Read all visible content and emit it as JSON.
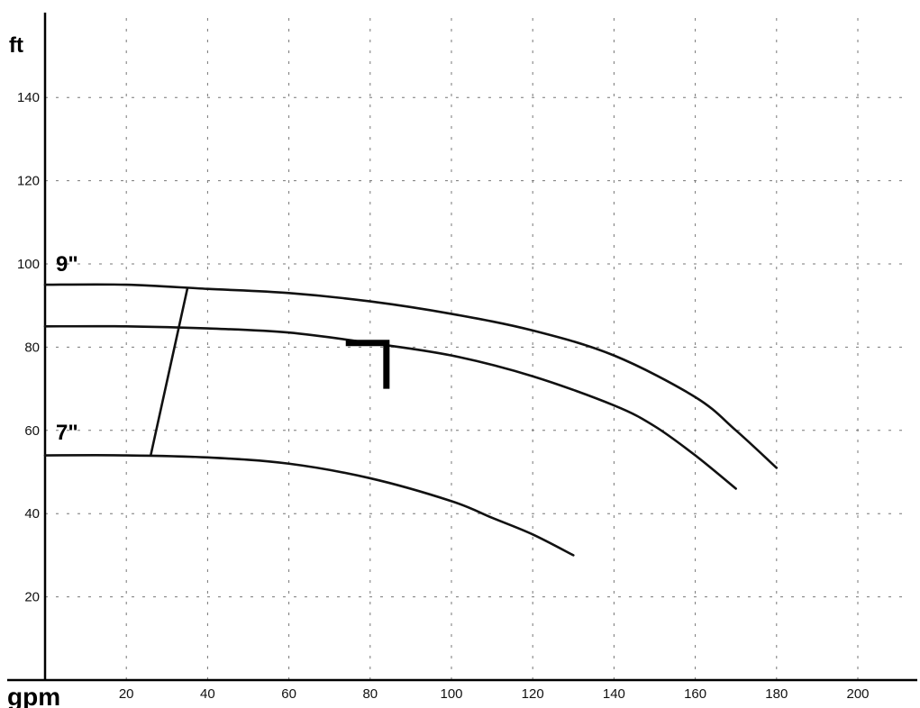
{
  "chart_data": {
    "type": "line",
    "xlabel": "gpm",
    "ylabel": "ft",
    "xlim": [
      0,
      200
    ],
    "ylim": [
      0,
      150
    ],
    "x_ticks": [
      20,
      40,
      60,
      80,
      100,
      120,
      140,
      160,
      180,
      200
    ],
    "y_ticks": [
      20,
      40,
      60,
      80,
      100,
      120,
      140
    ],
    "grid": true,
    "legend": "none",
    "series": [
      {
        "name": "9\"",
        "x": [
          0,
          20,
          40,
          60,
          80,
          100,
          120,
          140,
          160,
          170,
          180
        ],
        "y": [
          95,
          95,
          94,
          93,
          91,
          88,
          84,
          78,
          68,
          60,
          51
        ]
      },
      {
        "x": [
          0,
          20,
          40,
          60,
          80,
          100,
          120,
          140,
          150,
          160,
          170
        ],
        "y": [
          85,
          85,
          84.5,
          83.5,
          81,
          78,
          73,
          66,
          61,
          54,
          46
        ]
      },
      {
        "name": "7\"",
        "x": [
          0,
          20,
          40,
          60,
          80,
          100,
          110,
          120,
          130
        ],
        "y": [
          54,
          54,
          53.5,
          52,
          48.5,
          43,
          39,
          35,
          30
        ]
      },
      {
        "x": [
          26,
          35
        ],
        "y": [
          54,
          94
        ]
      }
    ],
    "annotations": [
      {
        "type": "operating-point-marker",
        "x": [
          74,
          84,
          84
        ],
        "y": [
          81,
          81,
          70
        ]
      }
    ],
    "labels": {
      "curve_9": "9\"",
      "curve_7": "7\""
    }
  }
}
